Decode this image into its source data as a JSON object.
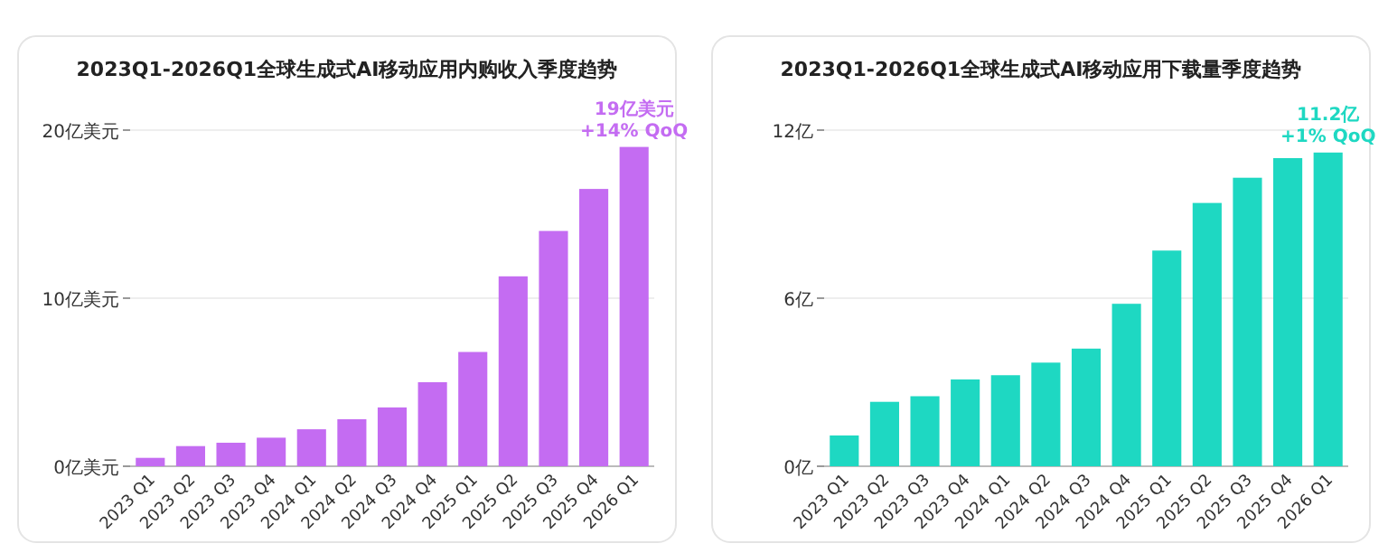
{
  "chart_data": [
    {
      "type": "bar",
      "title": "2023Q1-2026Q1全球生成式AI移动应用内购收入季度趋势",
      "categories": [
        "2023 Q1",
        "2023 Q2",
        "2023 Q3",
        "2023 Q4",
        "2024 Q1",
        "2024 Q2",
        "2024 Q3",
        "2024 Q4",
        "2025 Q1",
        "2025 Q2",
        "2025 Q3",
        "2025 Q4",
        "2026 Q1"
      ],
      "series": [
        {
          "color": "#c46cf2",
          "values": [
            0.5,
            1.2,
            1.4,
            1.7,
            2.2,
            2.8,
            3.5,
            5.0,
            6.8,
            11.3,
            14.0,
            16.5,
            19
          ]
        }
      ],
      "ylim": [
        0,
        20
      ],
      "yticks": [
        {
          "value": 0,
          "label": "0亿美元"
        },
        {
          "value": 10,
          "label": "10亿美元"
        },
        {
          "value": 20,
          "label": "20亿美元"
        }
      ],
      "grid": "y",
      "annotations": [
        {
          "text": "19亿美元",
          "x": "2026 Q1",
          "y": 19
        },
        {
          "text": "+14% QoQ",
          "x": "2026 Q1",
          "y": 19
        }
      ]
    },
    {
      "type": "bar",
      "title": "2023Q1-2026Q1全球生成式AI移动应用下载量季度趋势",
      "categories": [
        "2023 Q1",
        "2023 Q2",
        "2023 Q3",
        "2023 Q4",
        "2024 Q1",
        "2024 Q2",
        "2024 Q3",
        "2024 Q4",
        "2025 Q1",
        "2025 Q2",
        "2025 Q3",
        "2025 Q4",
        "2026 Q1"
      ],
      "series": [
        {
          "color": "#1ed8c2",
          "values": [
            1.1,
            2.3,
            2.5,
            3.1,
            3.25,
            3.7,
            4.2,
            5.8,
            7.7,
            9.4,
            10.3,
            11.0,
            11.2
          ]
        }
      ],
      "ylim": [
        0,
        12
      ],
      "yticks": [
        {
          "value": 0,
          "label": "0亿"
        },
        {
          "value": 6,
          "label": "6亿"
        },
        {
          "value": 12,
          "label": "12亿"
        }
      ],
      "grid": "y",
      "annotations": [
        {
          "text": "11.2亿",
          "x": "2026 Q1",
          "y": 11.2
        },
        {
          "text": "+1% QoQ",
          "x": "2026 Q1",
          "y": 11.2
        }
      ]
    }
  ]
}
